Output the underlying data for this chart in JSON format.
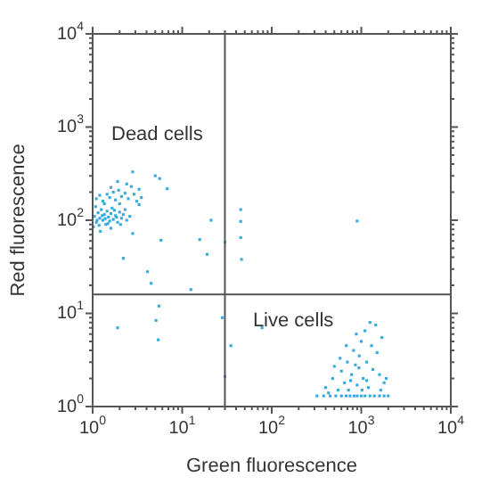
{
  "chart_data": {
    "type": "scatter",
    "xlabel": "Green fluorescence",
    "ylabel": "Red fluorescence",
    "log": "xy",
    "grid": false,
    "legend": false,
    "marker": "square",
    "xlim": [
      1,
      10000
    ],
    "ylim": [
      1,
      10000
    ],
    "xticks": [
      {
        "value": 1,
        "label": "10$^{0}$"
      },
      {
        "value": 2,
        "label": null
      },
      {
        "value": 3,
        "label": null
      },
      {
        "value": 4,
        "label": null
      },
      {
        "value": 5,
        "label": null
      },
      {
        "value": 6,
        "label": null
      },
      {
        "value": 7,
        "label": null
      },
      {
        "value": 8,
        "label": null
      },
      {
        "value": 9,
        "label": null
      },
      {
        "value": 10,
        "label": "10$^{1}$"
      },
      {
        "value": 20,
        "label": null
      },
      {
        "value": 30,
        "label": null
      },
      {
        "value": 40,
        "label": null
      },
      {
        "value": 50,
        "label": null
      },
      {
        "value": 60,
        "label": null
      },
      {
        "value": 70,
        "label": null
      },
      {
        "value": 80,
        "label": null
      },
      {
        "value": 90,
        "label": null
      },
      {
        "value": 100,
        "label": "10$^{2}$"
      },
      {
        "value": 200,
        "label": null
      },
      {
        "value": 300,
        "label": null
      },
      {
        "value": 400,
        "label": null
      },
      {
        "value": 500,
        "label": null
      },
      {
        "value": 600,
        "label": null
      },
      {
        "value": 700,
        "label": null
      },
      {
        "value": 800,
        "label": null
      },
      {
        "value": 900,
        "label": null
      },
      {
        "value": 1000,
        "label": "10$^{3}$"
      },
      {
        "value": 2000,
        "label": null
      },
      {
        "value": 3000,
        "label": null
      },
      {
        "value": 4000,
        "label": null
      },
      {
        "value": 5000,
        "label": null
      },
      {
        "value": 6000,
        "label": null
      },
      {
        "value": 7000,
        "label": null
      },
      {
        "value": 8000,
        "label": null
      },
      {
        "value": 9000,
        "label": null
      },
      {
        "value": 10000,
        "label": "10$^{4}$"
      }
    ],
    "yticks": [
      {
        "value": 1,
        "label": "10$^{0}$"
      },
      {
        "value": 2,
        "label": null
      },
      {
        "value": 3,
        "label": null
      },
      {
        "value": 4,
        "label": null
      },
      {
        "value": 5,
        "label": null
      },
      {
        "value": 6,
        "label": null
      },
      {
        "value": 7,
        "label": null
      },
      {
        "value": 8,
        "label": null
      },
      {
        "value": 9,
        "label": null
      },
      {
        "value": 10,
        "label": "10$^{1}$"
      },
      {
        "value": 20,
        "label": null
      },
      {
        "value": 30,
        "label": null
      },
      {
        "value": 40,
        "label": null
      },
      {
        "value": 50,
        "label": null
      },
      {
        "value": 60,
        "label": null
      },
      {
        "value": 70,
        "label": null
      },
      {
        "value": 80,
        "label": null
      },
      {
        "value": 90,
        "label": null
      },
      {
        "value": 100,
        "label": "10$^{2}$"
      },
      {
        "value": 200,
        "label": null
      },
      {
        "value": 300,
        "label": null
      },
      {
        "value": 400,
        "label": null
      },
      {
        "value": 500,
        "label": null
      },
      {
        "value": 600,
        "label": null
      },
      {
        "value": 700,
        "label": null
      },
      {
        "value": 800,
        "label": null
      },
      {
        "value": 900,
        "label": null
      },
      {
        "value": 1000,
        "label": "10$^{3}$"
      },
      {
        "value": 2000,
        "label": null
      },
      {
        "value": 3000,
        "label": null
      },
      {
        "value": 4000,
        "label": null
      },
      {
        "value": 5000,
        "label": null
      },
      {
        "value": 6000,
        "label": null
      },
      {
        "value": 7000,
        "label": null
      },
      {
        "value": 8000,
        "label": null
      },
      {
        "value": 9000,
        "label": null
      },
      {
        "value": 10000,
        "label": "10$^{4}$"
      }
    ],
    "ref_lines": [
      {
        "axis": "x",
        "value": 30,
        "color": "#555555"
      },
      {
        "axis": "y",
        "value": 16,
        "color": "#555555"
      }
    ],
    "annotations": [
      "Dead cells",
      "Live cells"
    ],
    "series": [
      {
        "color": "#33aadd",
        "x": [
          1.05,
          1.1,
          1.15,
          1.2,
          1.25,
          1.3,
          1.35,
          1.4,
          1.45,
          1.5,
          1.55,
          1.6,
          1.7,
          1.75,
          1.8,
          1.9,
          2.0,
          2.1,
          2.2,
          2.4,
          2.6,
          1.02,
          1.08,
          1.12,
          1.18,
          1.28,
          1.38,
          1.48,
          1.65,
          1.85,
          2.05,
          2.3,
          1.22,
          1.6,
          1.1,
          1.2,
          1.3,
          1.45,
          1.55,
          1.7,
          1.8,
          1.95,
          2.1,
          2.3,
          2.5,
          2.7,
          2.9,
          3.1,
          2.4,
          1.6,
          2.0,
          1.35,
          3.5,
          2.8,
          1.9,
          3.3,
          3.3,
          5,
          5.6,
          6.8,
          2.8,
          5.8,
          2.2,
          4.1,
          4.5,
          12.5,
          15.7,
          19,
          21,
          45,
          45,
          45,
          46,
          30,
          5.5,
          5.1,
          5.4,
          1.9,
          28,
          35,
          30,
          78,
          900,
          320,
          380,
          450,
          520,
          600,
          680,
          750,
          830,
          900,
          1000,
          1100,
          1250,
          1400,
          1600,
          1800,
          2000,
          400,
          480,
          550,
          600,
          650,
          700,
          720,
          780,
          820,
          860,
          900,
          950,
          1000,
          1050,
          1100,
          1150,
          1200,
          1300,
          1350,
          1450,
          1500,
          1600,
          1700,
          1800,
          1900,
          580,
          880,
          1250,
          680,
          760,
          940,
          1020,
          1150,
          500,
          430,
          1650
        ],
        "values": [
          110,
          95,
          120,
          105,
          130,
          100,
          115,
          90,
          125,
          108,
          98,
          118,
          102,
          128,
          112,
          95,
          122,
          105,
          115,
          100,
          110,
          85,
          140,
          100,
          88,
          112,
          104,
          92,
          135,
          108,
          90,
          130,
          76,
          82,
          170,
          185,
          160,
          190,
          175,
          200,
          165,
          210,
          180,
          195,
          170,
          230,
          190,
          160,
          245,
          225,
          150,
          150,
          175,
          330,
          260,
          215,
          147,
          300,
          280,
          218,
          72,
          61,
          39,
          28,
          21,
          18,
          62,
          43,
          100,
          130,
          97,
          65,
          38,
          58,
          12,
          8.4,
          5.2,
          7,
          9,
          4.5,
          2.1,
          7,
          98,
          1.3,
          1.3,
          1.3,
          1.3,
          1.3,
          1.3,
          1.3,
          1.3,
          1.3,
          1.3,
          1.3,
          1.3,
          1.3,
          1.3,
          1.3,
          1.3,
          1.6,
          2.0,
          1.5,
          2.4,
          1.8,
          3.0,
          1.5,
          2.2,
          4.0,
          2.8,
          1.7,
          3.5,
          5.0,
          2.0,
          6.5,
          3.0,
          1.6,
          4.5,
          2.5,
          7.5,
          3.8,
          2.2,
          5.5,
          1.8,
          2.0,
          3.3,
          6.0,
          8.0,
          4.5,
          1.9,
          2.6,
          1.5,
          1.9,
          2.7,
          1.4,
          1.5
        ]
      }
    ]
  }
}
